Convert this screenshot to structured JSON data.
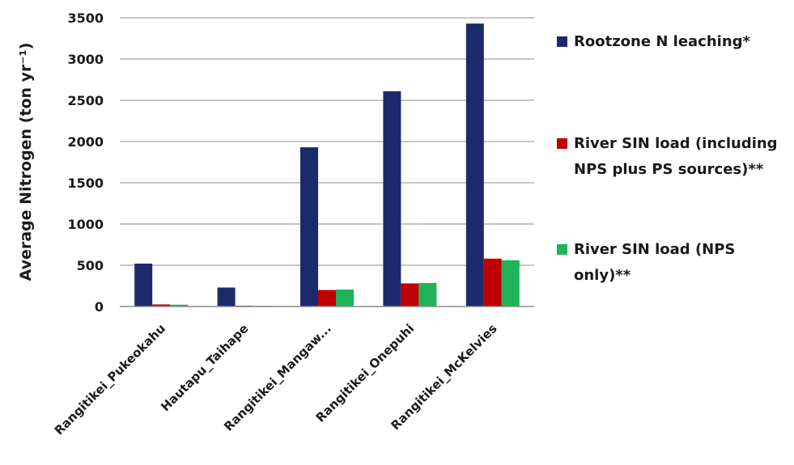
{
  "chart_data": {
    "type": "bar",
    "title": "",
    "xlabel": "",
    "ylabel": "Average Nitrogen (ton yr⁻¹)",
    "ylim": [
      0,
      3500
    ],
    "yticks": [
      0,
      500,
      1000,
      1500,
      2000,
      2500,
      3000,
      3500
    ],
    "grid": true,
    "legend_position": "right",
    "categories": [
      "Rangitikei_Pukeokahu",
      "Hautapu_Taihape",
      "Rangitikei_Mangaw...",
      "Rangitikei_Onepuhi",
      "Rangitikei_McKelvies"
    ],
    "series": [
      {
        "name": "Rootzone N leaching*",
        "color": "#1b2a6b",
        "values": [
          520,
          230,
          1930,
          2610,
          3430
        ]
      },
      {
        "name": "River SIN load (including NPS plus PS sources)**",
        "color": "#c00000",
        "values": [
          25,
          10,
          200,
          280,
          580
        ]
      },
      {
        "name": "River SIN load (NPS only)**",
        "color": "#1fb35a",
        "values": [
          22,
          8,
          205,
          285,
          560
        ]
      }
    ]
  }
}
